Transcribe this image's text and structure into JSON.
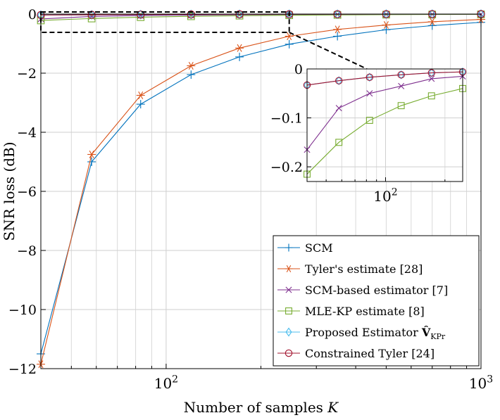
{
  "chart_data": {
    "type": "line",
    "xlabel": "Number of samples K",
    "ylabel": "SNR loss (dB)",
    "xscale": "log",
    "xlim": [
      40,
      1000
    ],
    "ylim": [
      -12,
      0
    ],
    "grid": true,
    "legend_position": "bottom-right",
    "x_tick_labels": [
      "10^2",
      "10^3"
    ],
    "y_tick_labels": [
      "0",
      "−2",
      "−4",
      "−6",
      "−8",
      "−10",
      "−12"
    ],
    "x": [
      40,
      58,
      83,
      120,
      171,
      246,
      350,
      500,
      700,
      1000
    ],
    "series": [
      {
        "name": "SCM",
        "color": "#0072bd",
        "marker": "plus",
        "values": [
          -11.5,
          -5.0,
          -3.05,
          -2.05,
          -1.45,
          -1.02,
          -0.75,
          -0.53,
          -0.39,
          -0.28
        ]
      },
      {
        "name": "Tyler's estimate [28]",
        "color": "#d95319",
        "marker": "asterisk",
        "values": [
          -11.85,
          -4.75,
          -2.75,
          -1.75,
          -1.15,
          -0.75,
          -0.52,
          -0.37,
          -0.26,
          -0.18
        ]
      },
      {
        "name": "SCM-based estimator [7]",
        "color": "#7e2f8e",
        "marker": "x",
        "values": [
          -0.165,
          -0.08,
          -0.05,
          -0.035,
          -0.02,
          -0.015,
          -0.01,
          -0.007,
          -0.005,
          -0.003
        ]
      },
      {
        "name": "MLE-KP estimate [8]",
        "color": "#77ac30",
        "marker": "square",
        "values": [
          -0.215,
          -0.15,
          -0.105,
          -0.075,
          -0.055,
          -0.04,
          -0.03,
          -0.02,
          -0.015,
          -0.01
        ]
      },
      {
        "name": "Proposed Estimator V̂KPr",
        "color": "#4dbeee",
        "marker": "diamond",
        "values": [
          -0.033,
          -0.024,
          -0.017,
          -0.012,
          -0.008,
          -0.006,
          -0.004,
          -0.003,
          -0.002,
          -0.001
        ]
      },
      {
        "name": "Constrained Tyler [24]",
        "color": "#a2142f",
        "marker": "circle",
        "values": [
          -0.033,
          -0.024,
          -0.017,
          -0.012,
          -0.008,
          -0.006,
          -0.004,
          -0.003,
          -0.002,
          -0.001
        ]
      }
    ],
    "inset": {
      "xlim": [
        40,
        246
      ],
      "ylim": [
        -0.23,
        0
      ],
      "x_tick_labels": [
        "10^2"
      ],
      "y_tick_labels": [
        "0",
        "−0.1",
        "−0.2"
      ],
      "series_names": [
        "SCM-based estimator [7]",
        "MLE-KP estimate [8]",
        "Proposed Estimator V̂KPr",
        "Constrained Tyler [24]"
      ]
    }
  }
}
